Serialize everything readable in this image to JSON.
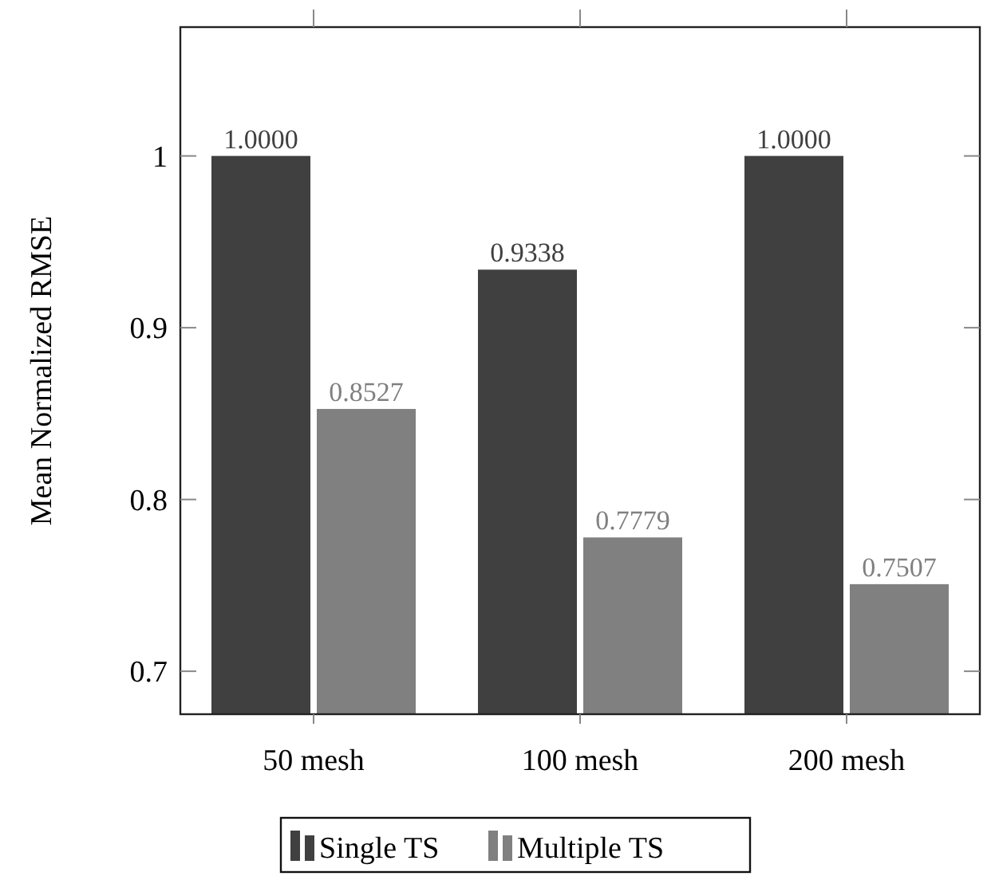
{
  "chart_data": {
    "type": "bar",
    "ylabel": "Mean Normalized RMSE",
    "categories": [
      "50 mesh",
      "100 mesh",
      "200 mesh"
    ],
    "series": [
      {
        "name": "Single TS",
        "color": "#404040",
        "values": [
          1.0,
          0.9338,
          1.0
        ],
        "value_labels": [
          "1.0000",
          "0.9338",
          "1.0000"
        ]
      },
      {
        "name": "Multiple TS",
        "color": "#808080",
        "values": [
          0.8527,
          0.7779,
          0.7507
        ],
        "value_labels": [
          "0.8527",
          "0.7779",
          "0.7507"
        ]
      }
    ],
    "ylim": [
      0.675,
      1.075
    ],
    "yticks": [
      0.7,
      0.8,
      0.9,
      1
    ],
    "legend": "bottom"
  }
}
